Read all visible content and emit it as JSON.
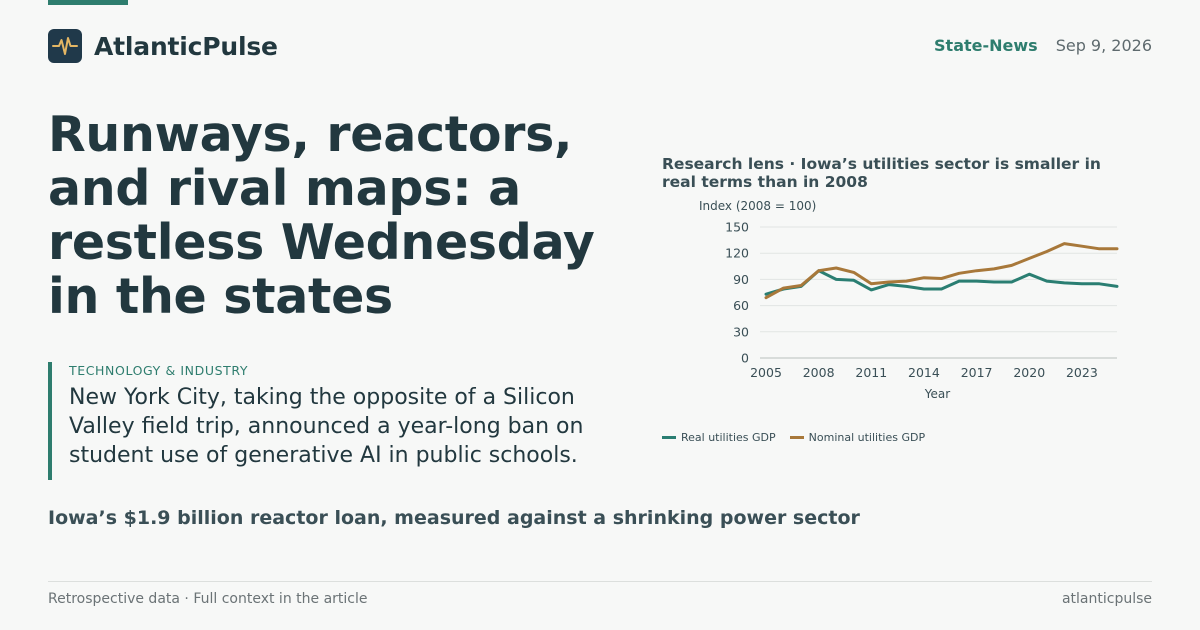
{
  "brand": {
    "name": "AtlanticPulse",
    "logo_icon": "pulse-waveform-icon",
    "logo_bg": "#20394a",
    "logo_stroke": "#e3b664"
  },
  "header": {
    "section": "State-News",
    "date": "Sep 9, 2026"
  },
  "headline": "Runways, reactors, and rival maps: a restless Wednesday in the states",
  "deck": {
    "kicker": "TECHNOLOGY & INDUSTRY",
    "text": "New York City, taking the opposite of a Silicon Valley field trip, announced a year-long ban on student use of generative AI in public schools."
  },
  "subhead": "Iowa’s $1.9 billion reactor loan, measured against a shrinking power sector",
  "footer": {
    "left": "Retrospective data · Full context in the article",
    "right": "atlanticpulse"
  },
  "colors": {
    "accent": "#2e7d6e",
    "real": "#2a7e72",
    "nominal": "#a8783a"
  },
  "chart_data": {
    "type": "line",
    "title": "Research lens · Iowa’s utilities sector is smaller in real terms than in 2008",
    "ylabel": "Index (2008 = 100)",
    "xlabel": "Year",
    "ylim": [
      0,
      150
    ],
    "xlim": [
      2005,
      2025
    ],
    "yticks": [
      0,
      30,
      60,
      90,
      120,
      150
    ],
    "xticks": [
      2005,
      2008,
      2011,
      2014,
      2017,
      2020,
      2023
    ],
    "grid": true,
    "legend": "bottom-left",
    "x": [
      2005,
      2006,
      2007,
      2008,
      2009,
      2010,
      2011,
      2012,
      2013,
      2014,
      2015,
      2016,
      2017,
      2018,
      2019,
      2020,
      2021,
      2022,
      2023,
      2024,
      2025
    ],
    "series": [
      {
        "name": "Real utilities GDP",
        "values": [
          73,
          79,
          82,
          100,
          90,
          89,
          78,
          84,
          82,
          79,
          79,
          88,
          88,
          87,
          87,
          96,
          88,
          86,
          85,
          85,
          82
        ]
      },
      {
        "name": "Nominal utilities GDP",
        "values": [
          69,
          80,
          83,
          100,
          103,
          98,
          85,
          87,
          88,
          92,
          91,
          97,
          100,
          102,
          106,
          114,
          122,
          131,
          128,
          125,
          125
        ]
      }
    ]
  }
}
